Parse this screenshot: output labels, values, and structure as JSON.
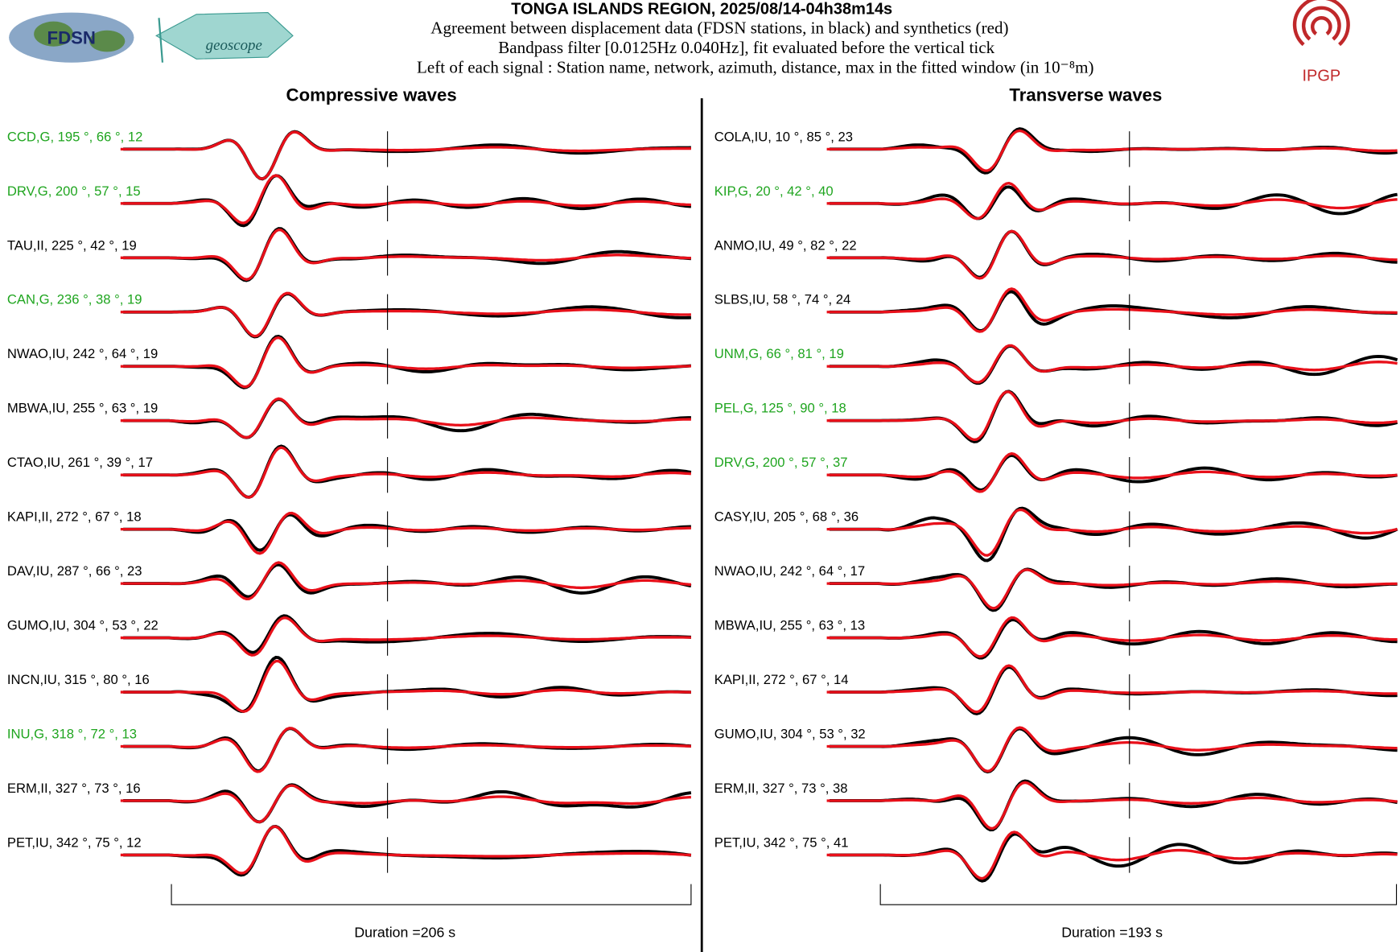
{
  "header": {
    "title": "TONGA ISLANDS REGION, 2025/08/14-04h38m14s",
    "lines": [
      "Agreement between displacement data (FDSN stations, in black) and synthetics (red)",
      "Bandpass filter [0.0125Hz 0.040Hz], fit evaluated before the vertical tick",
      "Left of each signal : Station name, network, azimuth, distance, max in the fitted window (in 10⁻⁸m)"
    ],
    "logos": [
      "FDSN",
      "geoscope",
      "IPGP"
    ]
  },
  "panels": [
    {
      "title": "Compressive waves",
      "duration": "Duration =206 s",
      "stations": [
        {
          "label": "CCD,G, 195 °, 66 °, 12",
          "color": "#1fa51f"
        },
        {
          "label": "DRV,G, 200 °, 57 °, 15",
          "color": "#1fa51f"
        },
        {
          "label": "TAU,II, 225 °, 42 °, 19",
          "color": "#000000"
        },
        {
          "label": "CAN,G, 236 °, 38 °, 19",
          "color": "#1fa51f"
        },
        {
          "label": "NWAO,IU, 242 °, 64 °, 19",
          "color": "#000000"
        },
        {
          "label": "MBWA,IU, 255 °, 63 °, 19",
          "color": "#000000"
        },
        {
          "label": "CTAO,IU, 261 °, 39 °, 17",
          "color": "#000000"
        },
        {
          "label": "KAPI,II, 272 °, 67 °, 18",
          "color": "#000000"
        },
        {
          "label": "DAV,IU, 287 °, 66 °, 23",
          "color": "#000000"
        },
        {
          "label": "GUMO,IU, 304 °, 53 °, 22",
          "color": "#000000"
        },
        {
          "label": "INCN,IU, 315 °, 80 °, 16",
          "color": "#000000"
        },
        {
          "label": "INU,G, 318 °, 72 °, 13",
          "color": "#1fa51f"
        },
        {
          "label": "ERM,II, 327 °, 73 °, 16",
          "color": "#000000"
        },
        {
          "label": "PET,IU, 342 °, 75 °, 12",
          "color": "#000000"
        }
      ]
    },
    {
      "title": "Transverse waves",
      "duration": "Duration =193 s",
      "stations": [
        {
          "label": "COLA,IU, 10 °, 85 °, 23",
          "color": "#000000"
        },
        {
          "label": "KIP,G, 20 °, 42 °, 40",
          "color": "#1fa51f"
        },
        {
          "label": "ANMO,IU, 49 °, 82 °, 22",
          "color": "#000000"
        },
        {
          "label": "SLBS,IU, 58 °, 74 °, 24",
          "color": "#000000"
        },
        {
          "label": "UNM,G, 66 °, 81 °, 19",
          "color": "#1fa51f"
        },
        {
          "label": "PEL,G, 125 °, 90 °, 18",
          "color": "#1fa51f"
        },
        {
          "label": "DRV,G, 200 °, 57 °, 37",
          "color": "#1fa51f"
        },
        {
          "label": "CASY,IU, 205 °, 68 °, 36",
          "color": "#000000"
        },
        {
          "label": "NWAO,IU, 242 °, 64 °, 17",
          "color": "#000000"
        },
        {
          "label": "MBWA,IU, 255 °, 63 °, 13",
          "color": "#000000"
        },
        {
          "label": "KAPI,II, 272 °, 67 °, 14",
          "color": "#000000"
        },
        {
          "label": "GUMO,IU, 304 °, 53 °, 32",
          "color": "#000000"
        },
        {
          "label": "ERM,II, 327 °, 73 °, 38",
          "color": "#000000"
        },
        {
          "label": "PET,IU, 342 °, 75 °, 41",
          "color": "#000000"
        }
      ]
    }
  ]
}
